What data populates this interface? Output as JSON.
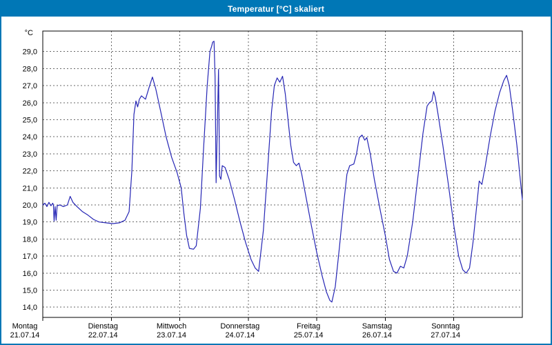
{
  "window": {
    "title": "Temperatur [°C] skaliert"
  },
  "colors": {
    "titlebar_bg": "#0077b6",
    "window_border": "#0077b6",
    "plot_bg": "#ffffff",
    "frame": "#000000",
    "grid": "#666666",
    "line": "#2424b4",
    "text": "#000000"
  },
  "chart_data": {
    "type": "line",
    "title": "Temperatur [°C] skaliert",
    "unit": "°C",
    "grid": "dashed",
    "legend": "none",
    "y_axis": {
      "min": 13.4,
      "max": 30.2,
      "ticks": [
        {
          "v": 29,
          "label": "29,0"
        },
        {
          "v": 28,
          "label": "28,0"
        },
        {
          "v": 27,
          "label": "27,0"
        },
        {
          "v": 26,
          "label": "26,0"
        },
        {
          "v": 25,
          "label": "25,0"
        },
        {
          "v": 24,
          "label": "24,0"
        },
        {
          "v": 23,
          "label": "23,0"
        },
        {
          "v": 22,
          "label": "22,0"
        },
        {
          "v": 21,
          "label": "21,0"
        },
        {
          "v": 20,
          "label": "20,0"
        },
        {
          "v": 19,
          "label": "19,0"
        },
        {
          "v": 18,
          "label": "18,0"
        },
        {
          "v": 17,
          "label": "17,0"
        },
        {
          "v": 16,
          "label": "16,0"
        },
        {
          "v": 15,
          "label": "15,0"
        },
        {
          "v": 14,
          "label": "14,0"
        }
      ]
    },
    "x_axis": {
      "span_days": 7,
      "days": [
        {
          "day": "Montag",
          "date": "21.07.14"
        },
        {
          "day": "Dienstag",
          "date": "22.07.14"
        },
        {
          "day": "Mittwoch",
          "date": "23.07.14"
        },
        {
          "day": "Donnerstag",
          "date": "24.07.14"
        },
        {
          "day": "Freitag",
          "date": "25.07.14"
        },
        {
          "day": "Samstag",
          "date": "26.07.14"
        },
        {
          "day": "Sonntag",
          "date": "27.07.14"
        }
      ]
    },
    "series": [
      {
        "name": "Temperatur",
        "color": "#2424b4",
        "points": [
          [
            0.0,
            20.0
          ],
          [
            0.03,
            20.1
          ],
          [
            0.06,
            19.9
          ],
          [
            0.09,
            20.15
          ],
          [
            0.12,
            19.95
          ],
          [
            0.145,
            20.1
          ],
          [
            0.155,
            20.0
          ],
          [
            0.165,
            19.05
          ],
          [
            0.18,
            19.9
          ],
          [
            0.195,
            19.1
          ],
          [
            0.21,
            19.95
          ],
          [
            0.25,
            20.0
          ],
          [
            0.3,
            19.9
          ],
          [
            0.36,
            20.0
          ],
          [
            0.4,
            20.5
          ],
          [
            0.44,
            20.15
          ],
          [
            0.5,
            19.9
          ],
          [
            0.58,
            19.6
          ],
          [
            0.66,
            19.4
          ],
          [
            0.74,
            19.15
          ],
          [
            0.82,
            19.0
          ],
          [
            0.92,
            18.95
          ],
          [
            1.02,
            18.9
          ],
          [
            1.12,
            18.95
          ],
          [
            1.2,
            19.1
          ],
          [
            1.26,
            19.6
          ],
          [
            1.3,
            22.0
          ],
          [
            1.33,
            25.3
          ],
          [
            1.36,
            26.1
          ],
          [
            1.385,
            25.75
          ],
          [
            1.41,
            26.2
          ],
          [
            1.44,
            26.4
          ],
          [
            1.5,
            26.2
          ],
          [
            1.56,
            27.0
          ],
          [
            1.6,
            27.5
          ],
          [
            1.65,
            26.8
          ],
          [
            1.72,
            25.5
          ],
          [
            1.8,
            24.0
          ],
          [
            1.88,
            22.8
          ],
          [
            1.96,
            21.9
          ],
          [
            2.02,
            21.0
          ],
          [
            2.06,
            19.5
          ],
          [
            2.1,
            18.2
          ],
          [
            2.14,
            17.45
          ],
          [
            2.2,
            17.4
          ],
          [
            2.24,
            17.6
          ],
          [
            2.3,
            19.8
          ],
          [
            2.35,
            23.5
          ],
          [
            2.4,
            27.0
          ],
          [
            2.44,
            29.0
          ],
          [
            2.465,
            29.3
          ],
          [
            2.48,
            29.55
          ],
          [
            2.5,
            29.6
          ],
          [
            2.515,
            27.5
          ],
          [
            2.53,
            21.3
          ],
          [
            2.55,
            25.0
          ],
          [
            2.565,
            27.95
          ],
          [
            2.58,
            21.7
          ],
          [
            2.6,
            21.5
          ],
          [
            2.62,
            22.3
          ],
          [
            2.66,
            22.2
          ],
          [
            2.72,
            21.5
          ],
          [
            2.8,
            20.3
          ],
          [
            2.88,
            19.0
          ],
          [
            2.96,
            17.8
          ],
          [
            3.04,
            16.8
          ],
          [
            3.1,
            16.3
          ],
          [
            3.15,
            16.1
          ],
          [
            3.22,
            18.5
          ],
          [
            3.28,
            22.0
          ],
          [
            3.34,
            25.5
          ],
          [
            3.38,
            27.0
          ],
          [
            3.42,
            27.45
          ],
          [
            3.46,
            27.2
          ],
          [
            3.5,
            27.55
          ],
          [
            3.54,
            26.5
          ],
          [
            3.58,
            25.0
          ],
          [
            3.62,
            23.5
          ],
          [
            3.66,
            22.5
          ],
          [
            3.7,
            22.3
          ],
          [
            3.74,
            22.45
          ],
          [
            3.78,
            21.8
          ],
          [
            3.84,
            20.5
          ],
          [
            3.92,
            18.8
          ],
          [
            4.0,
            17.2
          ],
          [
            4.08,
            15.8
          ],
          [
            4.14,
            14.9
          ],
          [
            4.19,
            14.4
          ],
          [
            4.22,
            14.3
          ],
          [
            4.27,
            15.2
          ],
          [
            4.33,
            17.5
          ],
          [
            4.39,
            20.0
          ],
          [
            4.44,
            21.8
          ],
          [
            4.48,
            22.3
          ],
          [
            4.54,
            22.4
          ],
          [
            4.58,
            23.0
          ],
          [
            4.62,
            23.95
          ],
          [
            4.66,
            24.1
          ],
          [
            4.7,
            23.8
          ],
          [
            4.73,
            23.95
          ],
          [
            4.78,
            23.0
          ],
          [
            4.84,
            21.5
          ],
          [
            4.92,
            19.8
          ],
          [
            5.0,
            18.2
          ],
          [
            5.06,
            16.8
          ],
          [
            5.12,
            16.1
          ],
          [
            5.17,
            16.0
          ],
          [
            5.22,
            16.4
          ],
          [
            5.27,
            16.3
          ],
          [
            5.32,
            17.0
          ],
          [
            5.4,
            19.0
          ],
          [
            5.48,
            21.8
          ],
          [
            5.55,
            24.2
          ],
          [
            5.61,
            25.8
          ],
          [
            5.645,
            26.0
          ],
          [
            5.68,
            26.1
          ],
          [
            5.705,
            26.65
          ],
          [
            5.73,
            26.3
          ],
          [
            5.77,
            25.3
          ],
          [
            5.84,
            23.5
          ],
          [
            5.92,
            21.2
          ],
          [
            6.0,
            18.8
          ],
          [
            6.07,
            17.0
          ],
          [
            6.13,
            16.2
          ],
          [
            6.18,
            16.0
          ],
          [
            6.23,
            16.3
          ],
          [
            6.28,
            17.8
          ],
          [
            6.33,
            19.8
          ],
          [
            6.37,
            21.4
          ],
          [
            6.41,
            21.2
          ],
          [
            6.46,
            22.3
          ],
          [
            6.53,
            24.0
          ],
          [
            6.6,
            25.5
          ],
          [
            6.67,
            26.6
          ],
          [
            6.73,
            27.3
          ],
          [
            6.77,
            27.6
          ],
          [
            6.81,
            27.0
          ],
          [
            6.86,
            25.5
          ],
          [
            6.92,
            23.5
          ],
          [
            6.97,
            21.5
          ],
          [
            7.0,
            20.3
          ]
        ]
      }
    ]
  }
}
